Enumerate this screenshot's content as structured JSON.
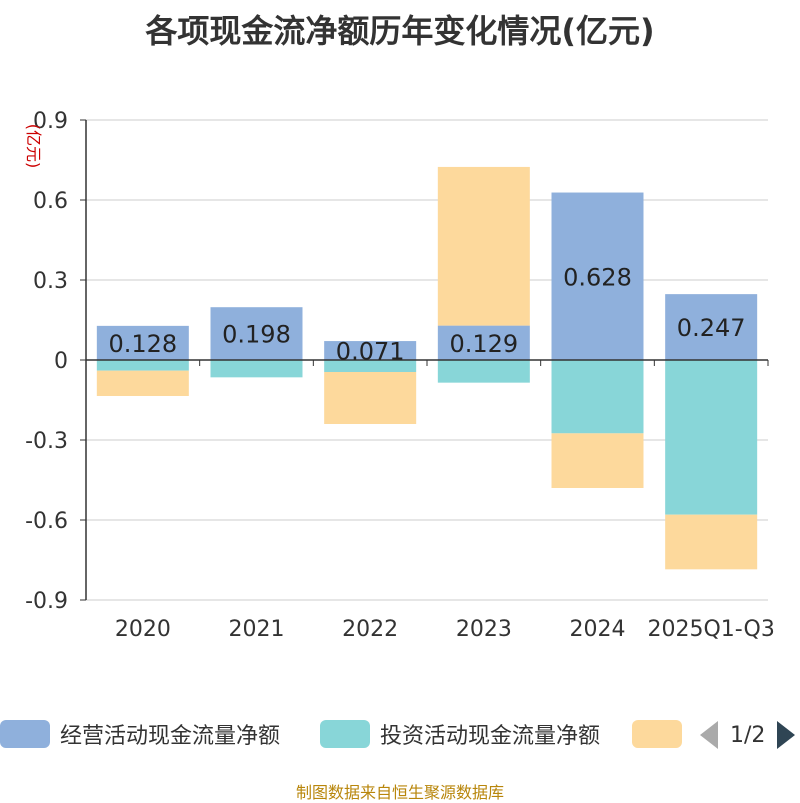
{
  "chart_data": {
    "type": "bar",
    "title": "各项现金流净额历年变化情况(亿元)",
    "ylabel": "(亿元)",
    "ylim": [
      -0.9,
      0.9
    ],
    "yticks": [
      "0.9",
      "0.6",
      "0.3",
      "0",
      "-0.3",
      "-0.6",
      "-0.9"
    ],
    "ytick_values": [
      0.9,
      0.6,
      0.3,
      0,
      -0.3,
      -0.6,
      -0.9
    ],
    "categories": [
      "2020",
      "2021",
      "2022",
      "2023",
      "2024",
      "2025Q1-Q3"
    ],
    "stacked": true,
    "series": [
      {
        "name": "经营活动现金流量净额",
        "color": "#8fb0dc",
        "values": [
          0.128,
          0.198,
          0.071,
          0.129,
          0.628,
          0.247
        ],
        "labels": [
          "0.128",
          "0.198",
          "0.071",
          "0.129",
          "0.628",
          "0.247"
        ]
      },
      {
        "name": "投资活动现金流量净额",
        "color": "#88d6d8",
        "values": [
          -0.04,
          -0.065,
          -0.045,
          -0.085,
          -0.275,
          -0.58
        ]
      },
      {
        "name": "",
        "color": "#fdd99c",
        "values": [
          -0.095,
          0.0,
          -0.195,
          0.595,
          -0.205,
          -0.205
        ]
      }
    ],
    "legend_position": "bottom",
    "legend_page": "1/2"
  },
  "source": "制图数据来自恒生聚源数据库"
}
